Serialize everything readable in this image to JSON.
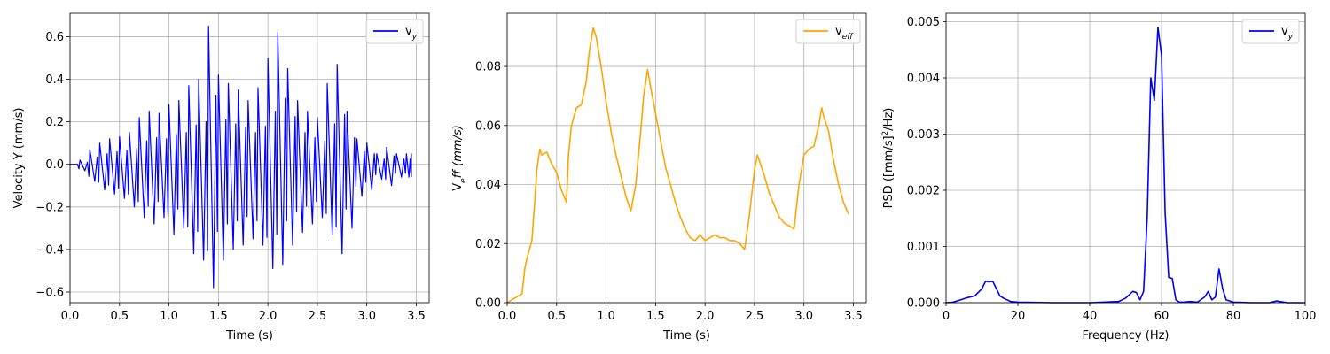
{
  "chart_data": [
    {
      "type": "line",
      "xlabel": "Time (s)",
      "ylabel": "Velocity Y (mm/s)",
      "xlim": [
        0,
        3.63
      ],
      "ylim": [
        -0.65,
        0.71
      ],
      "xticks": [
        0.0,
        0.5,
        1.0,
        1.5,
        2.0,
        2.5,
        3.0,
        3.5
      ],
      "xtick_labels": [
        "0.0",
        "0.5",
        "1.0",
        "1.5",
        "2.0",
        "2.5",
        "3.0",
        "3.5"
      ],
      "yticks": [
        -0.6,
        -0.4,
        -0.2,
        0.0,
        0.2,
        0.4,
        0.6
      ],
      "ytick_labels": [
        "−0.6",
        "−0.4",
        "−0.2",
        "0.0",
        "0.2",
        "0.4",
        "0.6"
      ],
      "grid": true,
      "legend": {
        "position": "top-right",
        "entries": [
          {
            "text": "v",
            "sub": "y",
            "color": "#0000ff"
          }
        ]
      },
      "series": [
        {
          "name": "vy",
          "color": "#0000ff",
          "x": [
            0.0,
            0.1,
            0.2,
            0.3,
            0.4,
            0.5,
            0.6,
            0.7,
            0.8,
            0.9,
            1.0,
            1.1,
            1.2,
            1.3,
            1.4,
            1.5,
            1.6,
            1.7,
            1.8,
            1.9,
            2.0,
            2.1,
            2.2,
            2.3,
            2.4,
            2.5,
            2.6,
            2.7,
            2.8,
            2.9,
            3.0,
            3.1,
            3.2,
            3.3,
            3.4,
            3.45
          ],
          "upper": [
            0.0,
            0.02,
            0.07,
            0.1,
            0.12,
            0.13,
            0.15,
            0.22,
            0.25,
            0.24,
            0.28,
            0.3,
            0.37,
            0.4,
            0.65,
            0.42,
            0.38,
            0.35,
            0.3,
            0.36,
            0.5,
            0.62,
            0.45,
            0.3,
            0.25,
            0.22,
            0.38,
            0.47,
            0.25,
            0.12,
            0.1,
            0.05,
            0.08,
            0.05,
            0.05,
            0.05
          ],
          "lower": [
            0.0,
            -0.03,
            -0.08,
            -0.12,
            -0.14,
            -0.16,
            -0.2,
            -0.25,
            -0.28,
            -0.25,
            -0.33,
            -0.3,
            -0.42,
            -0.45,
            -0.58,
            -0.45,
            -0.4,
            -0.38,
            -0.35,
            -0.38,
            -0.49,
            -0.47,
            -0.38,
            -0.32,
            -0.28,
            -0.25,
            -0.33,
            -0.42,
            -0.3,
            -0.15,
            -0.12,
            -0.07,
            -0.1,
            -0.06,
            -0.06,
            -0.06
          ]
        }
      ]
    },
    {
      "type": "line",
      "xlabel": "Time (s)",
      "ylabel": "V",
      "ylabel_sub": "e",
      "ylabel_rest": "ff (mm/s)",
      "xlim": [
        0,
        3.63
      ],
      "ylim": [
        0,
        0.098
      ],
      "xticks": [
        0.0,
        0.5,
        1.0,
        1.5,
        2.0,
        2.5,
        3.0,
        3.5
      ],
      "xtick_labels": [
        "0.0",
        "0.5",
        "1.0",
        "1.5",
        "2.0",
        "2.5",
        "3.0",
        "3.5"
      ],
      "yticks": [
        0.0,
        0.02,
        0.04,
        0.06,
        0.08
      ],
      "ytick_labels": [
        "0.00",
        "0.02",
        "0.04",
        "0.06",
        "0.08"
      ],
      "grid": true,
      "legend": {
        "position": "top-right",
        "entries": [
          {
            "text": "v",
            "sub": "eff",
            "color": "#ffa500"
          }
        ]
      },
      "series": [
        {
          "name": "veff",
          "color": "#ffa500",
          "x": [
            0.0,
            0.05,
            0.1,
            0.15,
            0.18,
            0.2,
            0.25,
            0.28,
            0.3,
            0.33,
            0.35,
            0.4,
            0.45,
            0.5,
            0.55,
            0.6,
            0.62,
            0.65,
            0.7,
            0.75,
            0.8,
            0.83,
            0.87,
            0.9,
            0.95,
            1.0,
            1.05,
            1.1,
            1.15,
            1.2,
            1.25,
            1.3,
            1.35,
            1.38,
            1.42,
            1.45,
            1.5,
            1.55,
            1.6,
            1.65,
            1.7,
            1.75,
            1.8,
            1.85,
            1.9,
            1.95,
            2.0,
            2.05,
            2.1,
            2.15,
            2.2,
            2.25,
            2.3,
            2.35,
            2.4,
            2.45,
            2.5,
            2.53,
            2.55,
            2.6,
            2.65,
            2.7,
            2.75,
            2.8,
            2.85,
            2.9,
            2.95,
            3.0,
            3.05,
            3.1,
            3.15,
            3.18,
            3.2,
            3.25,
            3.3,
            3.35,
            3.4,
            3.45
          ],
          "y": [
            0.0,
            0.001,
            0.002,
            0.003,
            0.012,
            0.015,
            0.021,
            0.035,
            0.045,
            0.052,
            0.05,
            0.051,
            0.047,
            0.044,
            0.038,
            0.034,
            0.05,
            0.06,
            0.066,
            0.067,
            0.075,
            0.085,
            0.093,
            0.09,
            0.08,
            0.068,
            0.058,
            0.05,
            0.043,
            0.036,
            0.031,
            0.04,
            0.058,
            0.07,
            0.079,
            0.073,
            0.064,
            0.055,
            0.046,
            0.04,
            0.034,
            0.029,
            0.025,
            0.022,
            0.021,
            0.023,
            0.021,
            0.022,
            0.023,
            0.022,
            0.022,
            0.021,
            0.021,
            0.02,
            0.018,
            0.03,
            0.045,
            0.05,
            0.048,
            0.043,
            0.037,
            0.033,
            0.029,
            0.027,
            0.026,
            0.025,
            0.04,
            0.05,
            0.052,
            0.053,
            0.06,
            0.066,
            0.063,
            0.058,
            0.048,
            0.04,
            0.034,
            0.03
          ]
        }
      ]
    },
    {
      "type": "line",
      "xlabel": "Frequency (Hz)",
      "ylabel": "PSD ([mm/s]",
      "ylabel_sup": "2",
      "ylabel_rest": "/Hz)",
      "xlim": [
        0,
        100
      ],
      "ylim": [
        0,
        0.00515
      ],
      "xticks": [
        0,
        20,
        40,
        60,
        80,
        100
      ],
      "xtick_labels": [
        "0",
        "20",
        "40",
        "60",
        "80",
        "100"
      ],
      "yticks": [
        0.0,
        0.001,
        0.002,
        0.003,
        0.004,
        0.005
      ],
      "ytick_labels": [
        "0.000",
        "0.001",
        "0.002",
        "0.003",
        "0.004",
        "0.005"
      ],
      "grid": true,
      "legend": {
        "position": "top-right",
        "entries": [
          {
            "text": "v",
            "sub": "y",
            "color": "#0000ff"
          }
        ]
      },
      "series": [
        {
          "name": "vy",
          "color": "#0000ff",
          "x": [
            0,
            2,
            4,
            6,
            8,
            10,
            11,
            12,
            13,
            14,
            15,
            16,
            18,
            20,
            30,
            40,
            48,
            50,
            52,
            53,
            54,
            55,
            56,
            57,
            58,
            59,
            60,
            61,
            62,
            63,
            64,
            65,
            66,
            68,
            70,
            72,
            73,
            74,
            75,
            76,
            77,
            78,
            80,
            85,
            90,
            92,
            95,
            100
          ],
          "y": [
            0,
            1e-05,
            5e-05,
            9e-05,
            0.00012,
            0.00025,
            0.00038,
            0.00037,
            0.00038,
            0.00025,
            0.00012,
            8e-05,
            2e-05,
            1e-05,
            0,
            0,
            2e-05,
            8e-05,
            0.0002,
            0.00018,
            5e-05,
            0.0002,
            0.0015,
            0.004,
            0.0036,
            0.0049,
            0.0044,
            0.0016,
            0.00045,
            0.00043,
            5e-05,
            1e-05,
            1e-05,
            2e-05,
            1e-05,
            0.0001,
            0.0002,
            5e-05,
            0.0001,
            0.0006,
            0.00025,
            5e-05,
            1e-05,
            0,
            0,
            3e-05,
            0,
            0
          ]
        }
      ]
    }
  ]
}
